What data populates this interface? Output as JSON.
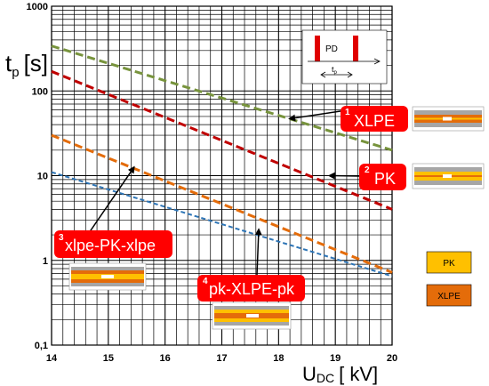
{
  "chart_data": {
    "type": "line",
    "title": "",
    "xlabel": "U",
    "xlabel_sub": "DC",
    "xlabel_unit": "[ kV]",
    "ylabel": "t",
    "ylabel_sub": "p",
    "ylabel_unit": "[s]",
    "xlim": [
      14,
      20
    ],
    "ylim": [
      0.1,
      1000
    ],
    "yscale": "log",
    "grid": true,
    "x_ticks": [
      "14",
      "15",
      "16",
      "17",
      "18",
      "19",
      "20"
    ],
    "y_ticks": [
      "0,1",
      "1",
      "10",
      "100",
      "1000"
    ],
    "series": [
      {
        "key": "xlpe",
        "color": "#77933c",
        "x": [
          14,
          20
        ],
        "y": [
          340,
          20
        ]
      },
      {
        "key": "pk",
        "color": "#c00000",
        "x": [
          14,
          20
        ],
        "y": [
          170,
          4
        ]
      },
      {
        "key": "xlpe-pk-xlpe",
        "color": "#e46c0a",
        "x": [
          14,
          20
        ],
        "y": [
          30,
          0.72
        ]
      },
      {
        "key": "pk-xlpe-pk",
        "color": "#2e75b6",
        "x": [
          14,
          20
        ],
        "y": [
          11,
          0.65
        ]
      }
    ],
    "callouts": [
      {
        "num": "1",
        "label": "XLPE",
        "target_x": 18.2,
        "target_y": 47
      },
      {
        "num": "2",
        "label": "PK",
        "target_x": 18.9,
        "target_y": 10
      },
      {
        "num": "3",
        "label": "xlpe-PK-xlpe",
        "target_x": 15.45,
        "target_y": 12.5
      },
      {
        "num": "4",
        "label": "pk-XLPE-pk",
        "target_x": 17.65,
        "target_y": 2.3
      }
    ],
    "inset": {
      "pd_label": "PD",
      "tp_label": "t",
      "tp_sub": "p"
    },
    "legend": [
      {
        "label": "PK",
        "color": "#ffc000"
      },
      {
        "label": "XLPE",
        "color": "#e46c0a"
      }
    ],
    "colors": {
      "grid": "#000000",
      "callout_bg": "#ff0000",
      "pd_pulse": "#e00000",
      "pk_layer": "#ffc000",
      "xlpe_layer": "#e46c0a",
      "insulation": "#a6a6a6"
    }
  }
}
